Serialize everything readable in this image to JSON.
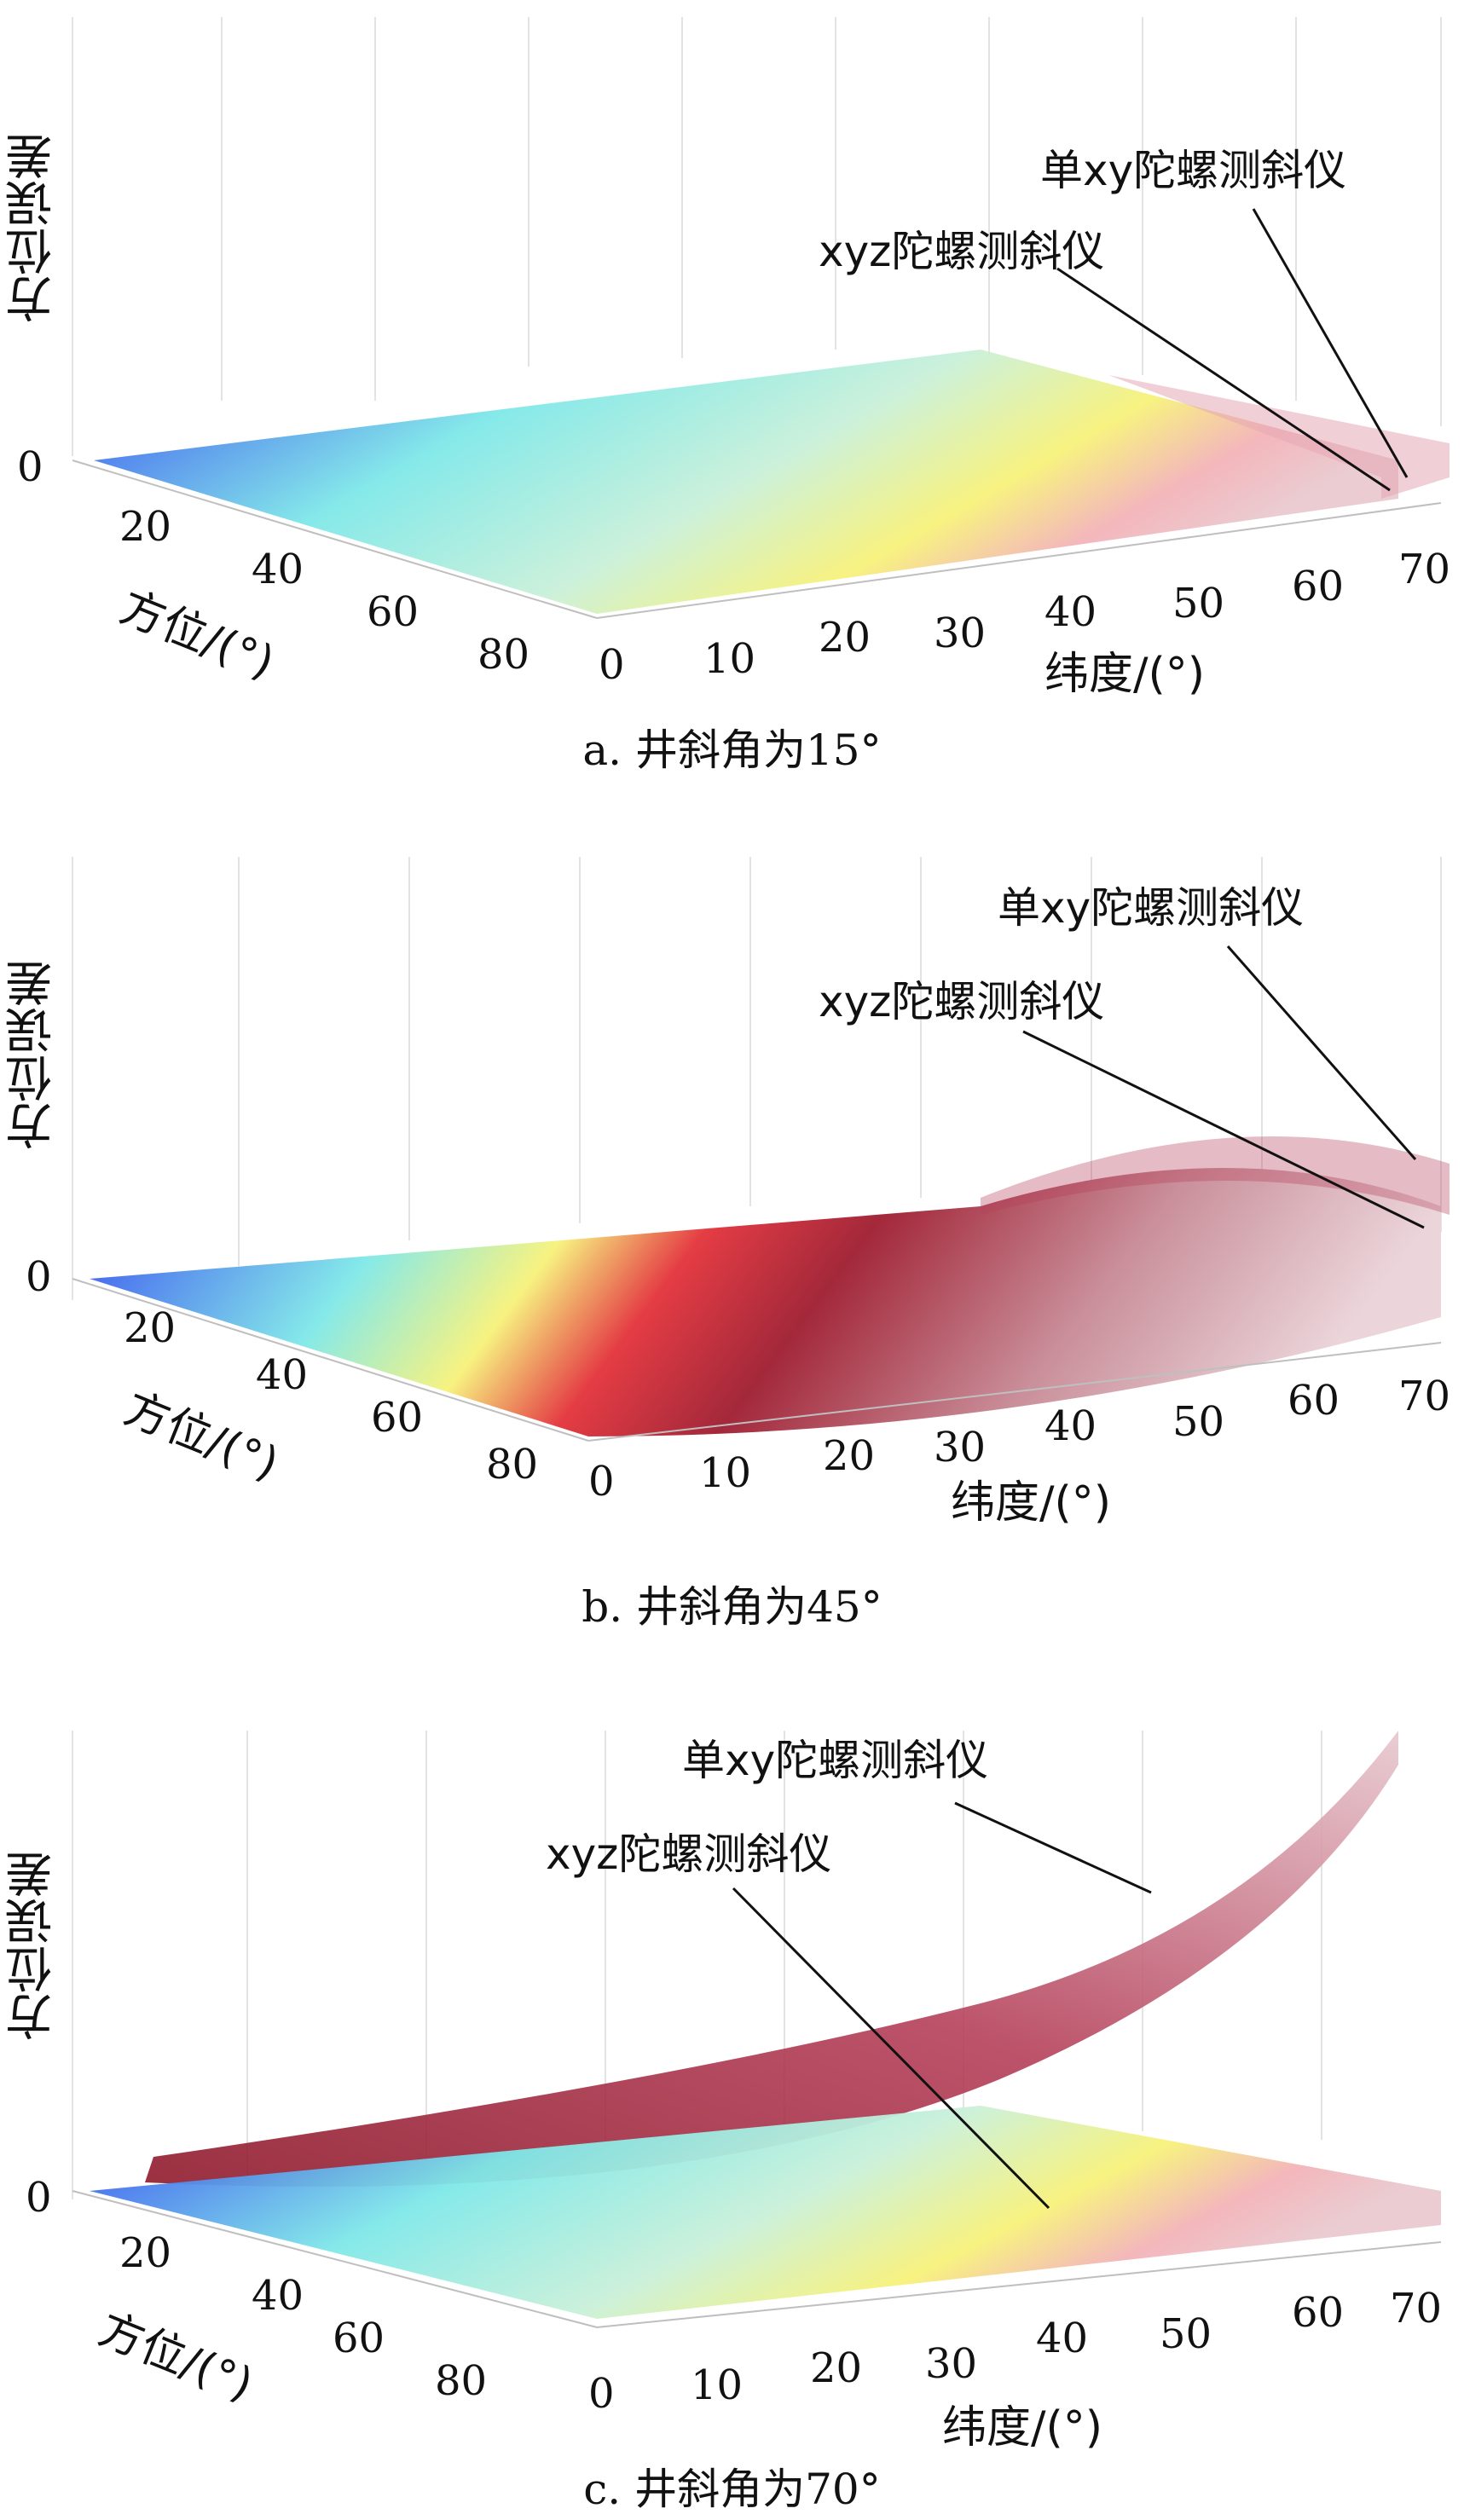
{
  "chart_data": [
    {
      "type": "surface",
      "zlabel": "方位误差",
      "xlabel": "纬度/(°)",
      "ylabel": "方位/(°)",
      "x_ticks": [
        "0",
        "10",
        "20",
        "30",
        "40",
        "50",
        "60",
        "70"
      ],
      "y_ticks": [
        "20",
        "40",
        "60",
        "80"
      ],
      "z_ticks": [
        "0"
      ],
      "xlim": [
        0,
        70
      ],
      "ylim": [
        0,
        90
      ],
      "caption": "a. 井斜角为15°",
      "annotations": [
        "单xy陀螺测斜仪",
        "xyz陀螺测斜仪"
      ],
      "colors": {
        "low": "#2b3df0",
        "mid": "#7fe8e8",
        "high": "#f7f27a",
        "top": "#b0203a"
      }
    },
    {
      "type": "surface",
      "zlabel": "方位误差",
      "xlabel": "纬度/(°)",
      "ylabel": "方位/(°)",
      "x_ticks": [
        "0",
        "10",
        "20",
        "30",
        "40",
        "50",
        "60",
        "70"
      ],
      "y_ticks": [
        "20",
        "40",
        "60",
        "80"
      ],
      "z_ticks": [
        "0"
      ],
      "xlim": [
        0,
        70
      ],
      "ylim": [
        0,
        90
      ],
      "caption": "b. 井斜角为45°",
      "annotations": [
        "单xy陀螺测斜仪",
        "xyz陀螺测斜仪"
      ],
      "colors": {
        "low": "#2b3df0",
        "mid": "#7fe8e8",
        "high": "#f7f27a",
        "top": "#b0203a"
      }
    },
    {
      "type": "surface",
      "zlabel": "方位误差",
      "xlabel": "纬度/(°)",
      "ylabel": "方位/(°)",
      "x_ticks": [
        "0",
        "10",
        "20",
        "30",
        "40",
        "50",
        "60",
        "70"
      ],
      "y_ticks": [
        "20",
        "40",
        "60",
        "80"
      ],
      "z_ticks": [
        "0"
      ],
      "xlim": [
        0,
        70
      ],
      "ylim": [
        0,
        90
      ],
      "caption": "c. 井斜角为70°",
      "annotations": [
        "单xy陀螺测斜仪",
        "xyz陀螺测斜仪"
      ],
      "colors": {
        "low": "#2b3df0",
        "mid": "#7fe8e8",
        "high": "#f7f27a",
        "top": "#b0203a"
      }
    }
  ]
}
